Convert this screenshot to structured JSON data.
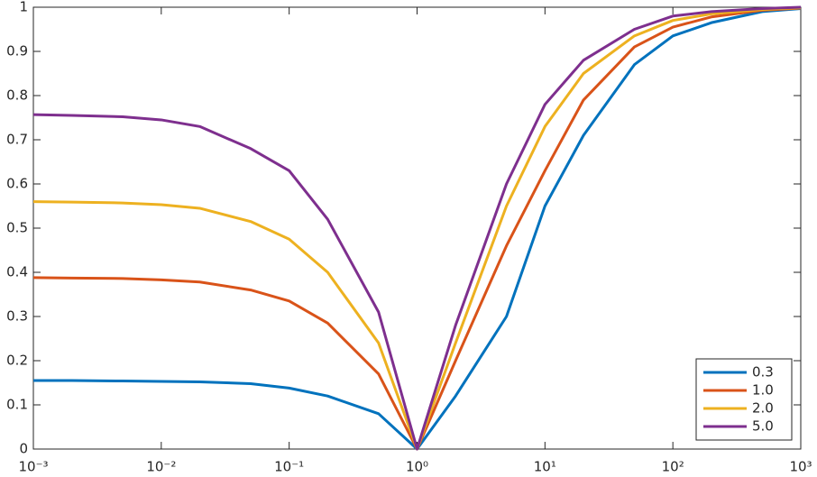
{
  "chart_data": {
    "type": "line",
    "log_x": true,
    "x": [
      0.001,
      0.002,
      0.005,
      0.01,
      0.02,
      0.05,
      0.1,
      0.2,
      0.5,
      1,
      2,
      5,
      10,
      20,
      50,
      100,
      200,
      500,
      1000
    ],
    "series": [
      {
        "name": "0.3",
        "color": "#0072bd",
        "values": [
          0.155,
          0.155,
          0.154,
          0.153,
          0.152,
          0.148,
          0.138,
          0.12,
          0.08,
          0,
          0.12,
          0.3,
          0.55,
          0.71,
          0.87,
          0.935,
          0.965,
          0.99,
          0.997
        ]
      },
      {
        "name": "1.0",
        "color": "#d95319",
        "values": [
          0.388,
          0.387,
          0.386,
          0.383,
          0.378,
          0.36,
          0.335,
          0.285,
          0.17,
          0,
          0.2,
          0.46,
          0.63,
          0.79,
          0.91,
          0.955,
          0.978,
          0.993,
          0.998
        ]
      },
      {
        "name": "2.0",
        "color": "#edb120",
        "values": [
          0.56,
          0.559,
          0.557,
          0.553,
          0.545,
          0.515,
          0.475,
          0.4,
          0.24,
          0,
          0.24,
          0.55,
          0.73,
          0.85,
          0.935,
          0.97,
          0.985,
          0.995,
          0.999
        ]
      },
      {
        "name": "5.0",
        "color": "#7e2f8e",
        "values": [
          0.757,
          0.755,
          0.752,
          0.745,
          0.73,
          0.68,
          0.63,
          0.52,
          0.31,
          0,
          0.28,
          0.6,
          0.78,
          0.88,
          0.95,
          0.98,
          0.99,
          0.997,
          1.0
        ]
      }
    ],
    "xlim": [
      0.001,
      1000
    ],
    "xticks": [
      {
        "value": 0.001,
        "label": "10⁻³"
      },
      {
        "value": 0.01,
        "label": "10⁻²"
      },
      {
        "value": 0.1,
        "label": "10⁻¹"
      },
      {
        "value": 1,
        "label": "10⁰"
      },
      {
        "value": 10,
        "label": "10¹"
      },
      {
        "value": 100,
        "label": "10²"
      },
      {
        "value": 1000,
        "label": "10³"
      }
    ],
    "ylim": [
      0,
      1
    ],
    "yticks": [
      0,
      0.1,
      0.2,
      0.3,
      0.4,
      0.5,
      0.6,
      0.7,
      0.8,
      0.9,
      1
    ],
    "legend": "southeast"
  }
}
